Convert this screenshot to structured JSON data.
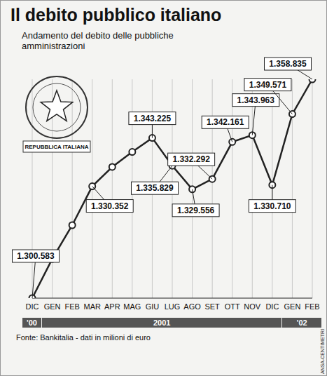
{
  "chart_data": {
    "type": "line",
    "title": "Il debito pubblico italiano",
    "subtitle": "Andamento del debito delle pubbliche amministrazioni",
    "categories": [
      "DIC",
      "GEN",
      "FEB",
      "MAR",
      "APR",
      "MAG",
      "GIU",
      "LUG",
      "AGO",
      "SET",
      "OTT",
      "NOV",
      "DIC",
      "GEN",
      "FEB"
    ],
    "year_groups": [
      {
        "label": "'00",
        "months": 1
      },
      {
        "label": "2001",
        "months": 12
      },
      {
        "label": "'02",
        "months": 2
      }
    ],
    "values": [
      1300583,
      1311000,
      1320000,
      1330352,
      1335500,
      1339500,
      1343225,
      1335829,
      1329556,
      1332292,
      1342161,
      1343963,
      1330710,
      1349571,
      1358835
    ],
    "value_labels": [
      "1.300.583",
      null,
      null,
      "1.330.352",
      null,
      null,
      "1.343.225",
      "1.335.829",
      "1.329.556",
      "1.332.292",
      "1.342.161",
      "1.343.963",
      "1.330.710",
      "1.349.571",
      "1.358.835"
    ],
    "data_labels": true,
    "tick_labels": "x",
    "grid": true,
    "color": "#222222",
    "marker": "circle",
    "source": "Fonte: Bankitalia - dati in milioni di euro",
    "emblem_text": "REPUBBLICA ITALIANA",
    "credit": "ANSA-CENTIMETRI"
  }
}
